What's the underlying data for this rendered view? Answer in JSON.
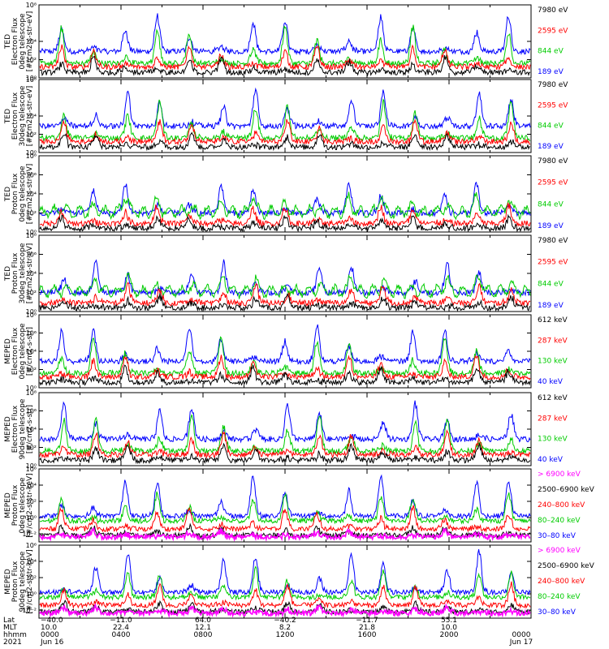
{
  "panels": [
    {
      "title": [
        "TED",
        "Electron Flux",
        "0deg telescope",
        "[#/cm2-s-str-eV]"
      ],
      "yticks": [
        {
          "e": 8,
          "label": "10⁸"
        },
        {
          "e": 4,
          "label": "10⁴"
        },
        {
          "e": 2,
          "label": "10²"
        },
        {
          "e": 0,
          "label": "10⁰"
        }
      ],
      "ylog": [
        0,
        8
      ],
      "legend": [
        {
          "text": "7980 eV",
          "color": "#000000"
        },
        {
          "text": "2595 eV",
          "color": "#ff0000"
        },
        {
          "text": "844 eV",
          "color": "#00cc00"
        },
        {
          "text": "189 eV",
          "color": "#0000ff"
        }
      ]
    },
    {
      "title": [
        "TED",
        "Electron Flux",
        "30deg telescope",
        "[#/cm2-s-str-eV]"
      ],
      "yticks": [
        {
          "e": 8,
          "label": "10⁸"
        },
        {
          "e": 4,
          "label": "10⁴"
        },
        {
          "e": 2,
          "label": "10²"
        },
        {
          "e": 0,
          "label": "10⁰"
        }
      ],
      "ylog": [
        0,
        8
      ],
      "legend": [
        {
          "text": "7980 eV",
          "color": "#000000"
        },
        {
          "text": "2595 eV",
          "color": "#ff0000"
        },
        {
          "text": "844 eV",
          "color": "#00cc00"
        },
        {
          "text": "189 eV",
          "color": "#0000ff"
        }
      ]
    },
    {
      "title": [
        "TED",
        "Proton Flux",
        "0deg telescope",
        "[#/cm2-s-str-eV]"
      ],
      "yticks": [
        {
          "e": 8,
          "label": "10⁸"
        },
        {
          "e": 6,
          "label": "10⁶"
        },
        {
          "e": 4,
          "label": "10⁴"
        },
        {
          "e": 2,
          "label": "10²"
        },
        {
          "e": 0,
          "label": "10⁰"
        }
      ],
      "ylog": [
        0,
        8
      ],
      "legend": [
        {
          "text": "7980 eV",
          "color": "#000000"
        },
        {
          "text": "2595 eV",
          "color": "#ff0000"
        },
        {
          "text": "844 eV",
          "color": "#00cc00"
        },
        {
          "text": "189 eV",
          "color": "#0000ff"
        }
      ]
    },
    {
      "title": [
        "TED",
        "Proton Flux",
        "30deg telescope",
        "[#/cm2-s-str-eV]"
      ],
      "yticks": [
        {
          "e": 8,
          "label": "10⁸"
        },
        {
          "e": 6,
          "label": "10⁶"
        },
        {
          "e": 4,
          "label": "10⁴"
        },
        {
          "e": 2,
          "label": "10²"
        },
        {
          "e": 0,
          "label": "10⁰"
        }
      ],
      "ylog": [
        0,
        8
      ],
      "legend": [
        {
          "text": "7980 eV",
          "color": "#000000"
        },
        {
          "text": "2595 eV",
          "color": "#ff0000"
        },
        {
          "text": "844 eV",
          "color": "#00cc00"
        },
        {
          "text": "189 eV",
          "color": "#0000ff"
        }
      ]
    },
    {
      "title": [
        "MEPED",
        "Electron Flux",
        "0deg telescope",
        "[#/cm2-s-str]"
      ],
      "yticks": [
        {
          "e": 8,
          "label": "10⁸"
        },
        {
          "e": 6,
          "label": "10⁶"
        },
        {
          "e": 4,
          "label": "10⁴"
        },
        {
          "e": 2,
          "label": "10²"
        },
        {
          "e": 0,
          "label": "10⁰"
        }
      ],
      "ylog": [
        0,
        8
      ],
      "legend": [
        {
          "text": "612 keV",
          "color": "#000000"
        },
        {
          "text": "287 keV",
          "color": "#ff0000"
        },
        {
          "text": "130 keV",
          "color": "#00cc00"
        },
        {
          "text": "40 keV",
          "color": "#0000ff"
        }
      ]
    },
    {
      "title": [
        "MEPED",
        "Electron Flux",
        "90deg telescope",
        "[#/cm2-s-str]"
      ],
      "yticks": [
        {
          "e": 8,
          "label": "10⁸"
        },
        {
          "e": 6,
          "label": "10⁶"
        },
        {
          "e": 4,
          "label": "10⁴"
        },
        {
          "e": 2,
          "label": "10²"
        },
        {
          "e": 0,
          "label": "10⁰"
        }
      ],
      "ylog": [
        0,
        8
      ],
      "legend": [
        {
          "text": "612 keV",
          "color": "#000000"
        },
        {
          "text": "287 keV",
          "color": "#ff0000"
        },
        {
          "text": "130 keV",
          "color": "#00cc00"
        },
        {
          "text": "40 keV",
          "color": "#0000ff"
        }
      ]
    },
    {
      "title": [
        "MEPED",
        "Proton Flux",
        "0deg telescope",
        "[#/cm2-s-str-keV]"
      ],
      "yticks": [
        {
          "e": 6,
          "label": "10⁶"
        },
        {
          "e": 4,
          "label": "10⁴"
        },
        {
          "e": 2,
          "label": "10²"
        },
        {
          "e": 0,
          "label": "10⁰"
        },
        {
          "e": -2,
          "label": "10⁻²"
        }
      ],
      "ylog": [
        -3,
        6
      ],
      "legend": [
        {
          "text": "> 6900 keV",
          "color": "#ff00ff"
        },
        {
          "text": "2500–6900 keV",
          "color": "#000000"
        },
        {
          "text": "240–800 keV",
          "color": "#ff0000"
        },
        {
          "text": "80–240 keV",
          "color": "#00cc00"
        },
        {
          "text": "30–80 keV",
          "color": "#0000ff"
        }
      ]
    },
    {
      "title": [
        "MEPED",
        "Proton Flux",
        "90deg telescope",
        "[#/cm2-s-str-keV]"
      ],
      "yticks": [
        {
          "e": 6,
          "label": "10⁶"
        },
        {
          "e": 4,
          "label": "10⁴"
        },
        {
          "e": 2,
          "label": "10²"
        },
        {
          "e": 0,
          "label": "10⁰"
        },
        {
          "e": -2,
          "label": "10⁻²"
        }
      ],
      "ylog": [
        -3,
        6
      ],
      "legend": [
        {
          "text": "> 6900 keV",
          "color": "#ff00ff"
        },
        {
          "text": "2500–6900 keV",
          "color": "#000000"
        },
        {
          "text": "240–800 keV",
          "color": "#ff0000"
        },
        {
          "text": "80–240 keV",
          "color": "#00cc00"
        },
        {
          "text": "30–80 keV",
          "color": "#0000ff"
        }
      ]
    }
  ],
  "footer": {
    "row_labels": [
      "Lat",
      "MLT",
      "hhmm",
      "2021"
    ],
    "columns": [
      {
        "lat": "−40.0",
        "mlt": "10.0",
        "hhmm": "0000",
        "date": "Jun 16"
      },
      {
        "lat": "−11.0",
        "mlt": "22.4",
        "hhmm": "0400",
        "date": ""
      },
      {
        "lat": "64.0",
        "mlt": "12.1",
        "hhmm": "0800",
        "date": ""
      },
      {
        "lat": "−40.2",
        "mlt": "8.2",
        "hhmm": "1200",
        "date": ""
      },
      {
        "lat": "−11.7",
        "mlt": "21.8",
        "hhmm": "1600",
        "date": ""
      },
      {
        "lat": "55.1",
        "mlt": "10.0",
        "hhmm": "2000",
        "date": ""
      },
      {
        "lat": "",
        "mlt": "",
        "hhmm": "0000",
        "date": "Jun 17"
      }
    ]
  },
  "chart_data": {
    "type": "line",
    "x_axis": {
      "label": "hhmm",
      "range": [
        "2021 Jun 16 0000",
        "2021 Jun 17 0000"
      ]
    },
    "y_scale": "log",
    "grid": false,
    "legend_placement": "right",
    "note": "Time series of satellite particle flux; approximately 15 auroral-zone passes per day, each producing a flux spike."
  }
}
